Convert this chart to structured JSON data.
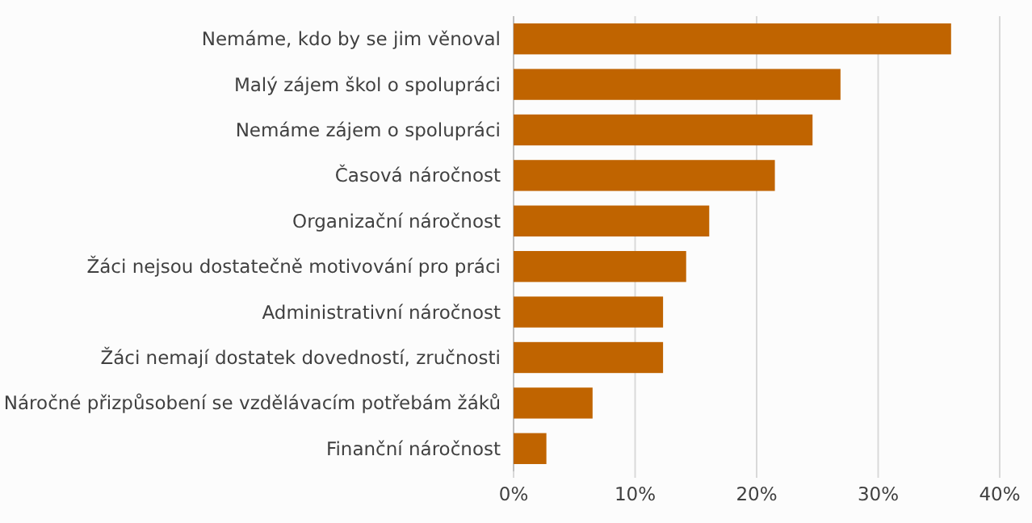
{
  "chart_data": {
    "type": "bar",
    "orientation": "horizontal",
    "categories": [
      "Nemáme, kdo by se jim věnoval",
      "Malý zájem škol o spolupráci",
      "Nemáme zájem o spolupráci",
      "Časová náročnost",
      "Organizační náročnost",
      "Žáci nejsou dostatečně motivování pro práci",
      "Administrativní náročnost",
      "Žáci nemají dostatek dovedností, zručnosti",
      "Náročné přizpůsobení se vzdělávacím potřebám žáků",
      "Finanční náročnost"
    ],
    "values": [
      36.0,
      26.9,
      24.6,
      21.5,
      16.1,
      14.2,
      12.3,
      12.3,
      6.5,
      2.7
    ],
    "color": "#c06400",
    "xlim": [
      0,
      40
    ],
    "xticks": [
      {
        "value": 0,
        "label": "0%"
      },
      {
        "value": 10,
        "label": "10%"
      },
      {
        "value": 20,
        "label": "20%"
      },
      {
        "value": 30,
        "label": "30%"
      },
      {
        "value": 40,
        "label": "40%"
      }
    ],
    "grid": "x"
  }
}
